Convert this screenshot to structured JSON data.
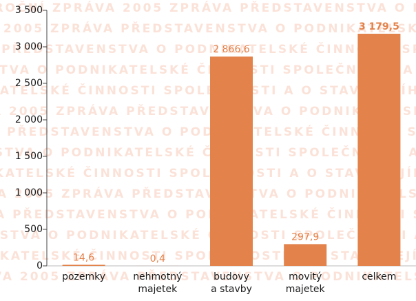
{
  "chart_data": {
    "type": "bar",
    "watermark": "VÝROČNÍ ZPRÁVA 2005 ZPRÁVA PŘEDSTAVENSTVA O PODNIKATELSKÉ ČINNOSTI SPOLEČNOSTI A O STAVU JEJÍHO MAJETKU VÝROČNÍ ZPRÁVA 2005 ZPRÁVA PŘEDSTAVENSTVA O PODNIKATELSKÉ ČINNOSTI SPOLEČNOSTI A O STAVU JEJÍHO MAJETKU",
    "categories": [
      "pozemky",
      "nehmotný\nmajetek",
      "budovy\na stavby",
      "movitý\nmajetek",
      "celkem"
    ],
    "values": [
      14.6,
      0.4,
      2866.6,
      297.9,
      3179.5
    ],
    "value_labels": [
      "14,6",
      "0,4",
      "2 866,6",
      "297,9",
      "3 179,5"
    ],
    "color": "#e3824a",
    "ylim": [
      0,
      3500
    ],
    "yticks": [
      0,
      500,
      {
        "value": 1000,
        "label": "1 000"
      },
      {
        "value": 1500,
        "label": "1 500"
      },
      {
        "value": 2000,
        "label": "2 000"
      },
      {
        "value": 2500,
        "label": "2 500"
      },
      {
        "value": 3000,
        "label": "3 000"
      },
      {
        "value": 3500,
        "label": "3 500"
      }
    ]
  }
}
